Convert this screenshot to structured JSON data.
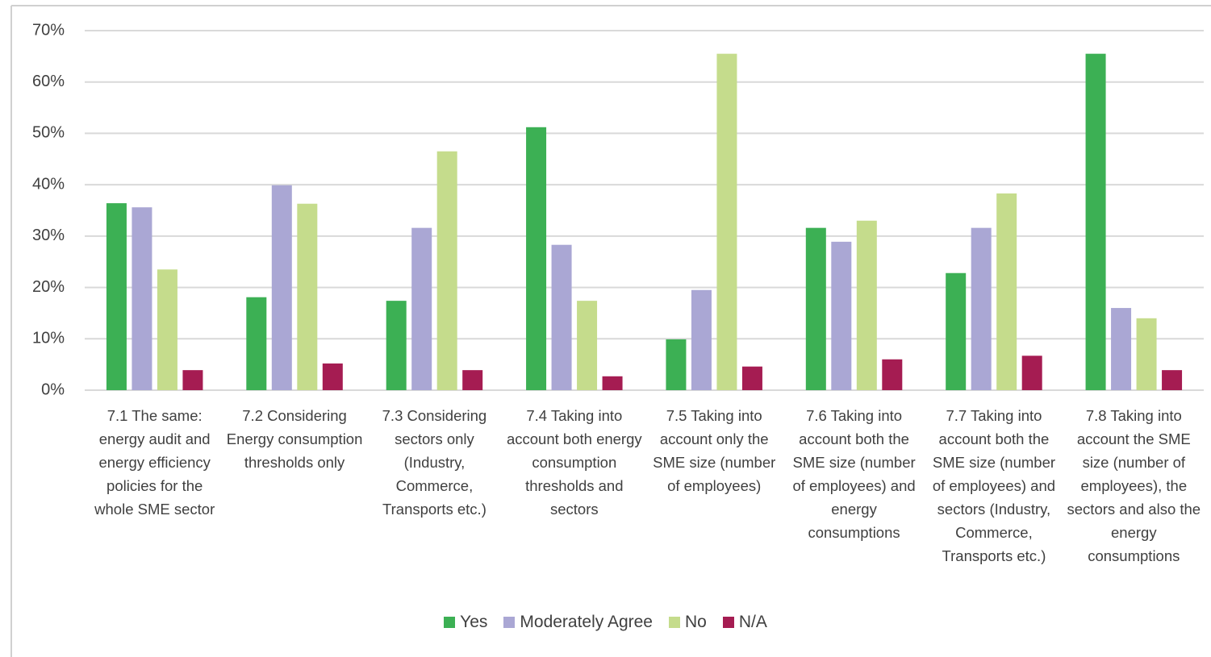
{
  "chart_data": {
    "type": "bar",
    "categories": [
      "7.1 The same: energy audit and energy efficiency policies for the whole SME sector",
      "7.2 Considering Energy consumption thresholds only",
      "7.3 Considering sectors only (Industry, Commerce, Transports etc.)",
      "7.4 Taking into account both energy consumption thresholds and sectors",
      "7.5 Taking into account only the SME size (number of employees)",
      "7.6 Taking into account both the SME size (number of employees) and energy consumptions",
      "7.7 Taking into account both the SME size (number of employees) and sectors (Industry, Commerce, Transports etc.)",
      "7.8 Taking into account the SME size (number of employees), the sectors and also the energy consumptions"
    ],
    "series": [
      {
        "name": "Yes",
        "color": "#3cb054",
        "values": [
          36.4,
          18.1,
          17.4,
          51.2,
          9.9,
          31.6,
          22.8,
          65.5
        ]
      },
      {
        "name": "Moderately Agree",
        "color": "#aaa7d4",
        "values": [
          35.6,
          39.9,
          31.6,
          28.3,
          19.5,
          28.9,
          31.6,
          16.0
        ]
      },
      {
        "name": "No",
        "color": "#c5dc8c",
        "values": [
          23.5,
          36.3,
          46.5,
          17.4,
          65.5,
          33.0,
          38.3,
          14.0
        ]
      },
      {
        "name": "N/A",
        "color": "#a51c52",
        "values": [
          3.9,
          5.2,
          3.9,
          2.7,
          4.6,
          6.0,
          6.7,
          3.9
        ]
      }
    ],
    "ylim": [
      0,
      70
    ],
    "yticks": [
      {
        "value": 0,
        "label": "0%"
      },
      {
        "value": 10,
        "label": "10%"
      },
      {
        "value": 20,
        "label": "20%"
      },
      {
        "value": 30,
        "label": "30%"
      },
      {
        "value": 40,
        "label": "40%"
      },
      {
        "value": 50,
        "label": "50%"
      },
      {
        "value": 60,
        "label": "60%"
      },
      {
        "value": 70,
        "label": "70%"
      }
    ],
    "grid": true,
    "legend": "bottom"
  }
}
